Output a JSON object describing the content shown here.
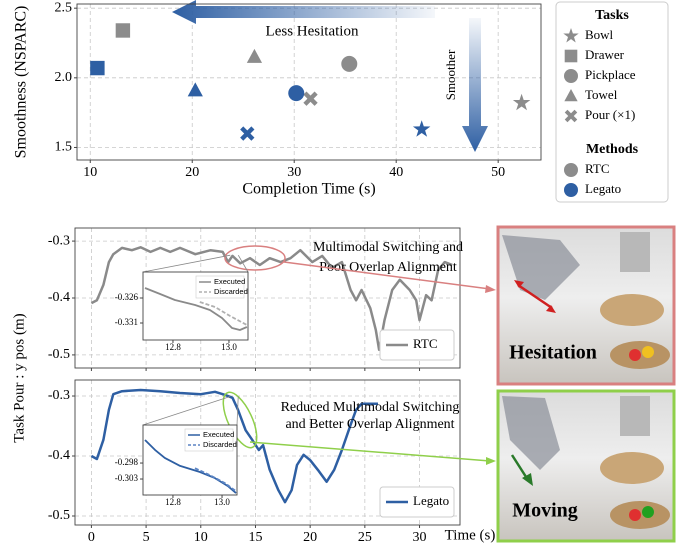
{
  "chart_data": [
    {
      "type": "scatter",
      "xlabel": "Completion Time (s)",
      "ylabel": "Smoothness (NSPARC)",
      "xlim": [
        8.7,
        54.2
      ],
      "ylim": [
        1.41,
        2.53
      ],
      "xticks": [
        10,
        20,
        30,
        40,
        50
      ],
      "yticks": [
        1.5,
        {
          "value": 2,
          "label": "2.0"
        },
        2.5
      ],
      "grid": true,
      "category_title": "Tasks",
      "categories": [
        "Bowl",
        "Drawer",
        "Pickplace",
        "Towel",
        "Pour (×1)"
      ],
      "markers": [
        "star",
        "square",
        "circle",
        "triangle",
        "x"
      ],
      "legend_marker_color": "#8c8c8c",
      "series_title": "Methods",
      "series": [
        {
          "name": "RTC",
          "color": "#8c8c8c",
          "x": [
            52.3,
            13.2,
            35.4,
            26.1,
            31.6
          ],
          "values": [
            1.82,
            2.34,
            2.1,
            2.15,
            1.85
          ]
        },
        {
          "name": "Legato",
          "color": "#2e5fa3",
          "x": [
            42.5,
            10.7,
            30.2,
            20.3,
            25.4
          ],
          "values": [
            1.63,
            2.07,
            1.89,
            1.91,
            1.6
          ]
        }
      ],
      "annotations": [
        "Less Hesitation",
        "Smoother"
      ]
    },
    {
      "type": "line",
      "ylabel": "Task Pour :  y pos (m)",
      "xlim": [
        -1.5,
        33.7
      ],
      "ylim": [
        -0.523,
        -0.277
      ],
      "xticks": [
        0,
        5,
        10,
        15,
        20,
        25,
        30
      ],
      "yticks": [
        -0.3,
        -0.4,
        -0.5
      ],
      "grid": true,
      "legend": "lower right",
      "series": [
        {
          "name": "RTC",
          "color": "#8a8a8a",
          "x": [
            0,
            0.5,
            1.1,
            1.6,
            2,
            2.8,
            3.7,
            4.5,
            5.4,
            6.3,
            7.2,
            8.1,
            9.5,
            10.9,
            12,
            12.5,
            12.9,
            13.6,
            14.5,
            15.4,
            16.3,
            17.3,
            18.2,
            19.1,
            20.2,
            21.1,
            22,
            22.9,
            23.7,
            24.2,
            24.7,
            25.5,
            26,
            26.3,
            26.8,
            27.5,
            28.2,
            29.1,
            29.7,
            30,
            30.6,
            31.1,
            31.7,
            32.3,
            33
          ],
          "values": [
            -0.409,
            -0.404,
            -0.377,
            -0.337,
            -0.323,
            -0.312,
            -0.316,
            -0.311,
            -0.319,
            -0.312,
            -0.319,
            -0.312,
            -0.323,
            -0.316,
            -0.319,
            -0.337,
            -0.326,
            -0.339,
            -0.33,
            -0.342,
            -0.33,
            -0.337,
            -0.33,
            -0.316,
            -0.337,
            -0.326,
            -0.347,
            -0.337,
            -0.386,
            -0.404,
            -0.386,
            -0.418,
            -0.456,
            -0.491,
            -0.439,
            -0.386,
            -0.368,
            -0.386,
            -0.404,
            -0.439,
            -0.395,
            -0.404,
            -0.351,
            -0.337,
            -0.342
          ]
        }
      ],
      "annotation": [
        "Multimodal Switching and",
        "Poor Overlap Alignment"
      ],
      "annotation_color": "#c0392b",
      "inset": {
        "xlim": [
          12.693,
          13.068
        ],
        "ylim": [
          -0.3344,
          -0.3208
        ],
        "xticks": [
          12.8,
          {
            "value": 13,
            "label": "13.0"
          }
        ],
        "yticks": [
          -0.326,
          -0.331
        ],
        "series": [
          {
            "name": "Executed",
            "color": "#8a8a8a",
            "x": [
              12.7,
              12.754,
              12.807,
              12.879,
              12.932,
              12.975,
              13.011,
              13.039,
              13.064
            ],
            "values": [
              -0.324,
              -0.3252,
              -0.3264,
              -0.3274,
              -0.3284,
              -0.33,
              -0.332,
              -0.3324,
              -0.3318
            ]
          },
          {
            "name": "Discarded",
            "color": "#b0b0b0",
            "dashed": true,
            "x": [
              12.896,
              12.95,
              13.004,
              13.064
            ],
            "values": [
              -0.3268,
              -0.3278,
              -0.3296,
              -0.3314
            ]
          }
        ]
      }
    },
    {
      "type": "line",
      "xlabel": "Time (s)",
      "xlim": [
        -1.5,
        33.7
      ],
      "ylim": [
        -0.515,
        -0.2733
      ],
      "xticks": [
        0,
        5,
        10,
        15,
        20,
        25,
        30
      ],
      "yticks": [
        -0.3,
        -0.4,
        -0.5
      ],
      "grid": true,
      "legend": "lower right",
      "series": [
        {
          "name": "Legato",
          "color": "#2e5fa3",
          "x": [
            0,
            0.5,
            1.1,
            1.6,
            2,
            2.8,
            4.5,
            6.3,
            8.1,
            10,
            11.3,
            12.2,
            12.9,
            13.4,
            14.1,
            14.7,
            15.3,
            15.7,
            16.3,
            17.1,
            17.7,
            18.3,
            18.8,
            19.4,
            20,
            20.7,
            21.5,
            22.2,
            22.9,
            23.7,
            24.2,
            24.7,
            25.5,
            26.2
          ],
          "values": [
            -0.4,
            -0.405,
            -0.373,
            -0.323,
            -0.297,
            -0.292,
            -0.29,
            -0.292,
            -0.295,
            -0.297,
            -0.293,
            -0.298,
            -0.303,
            -0.323,
            -0.357,
            -0.373,
            -0.39,
            -0.382,
            -0.423,
            -0.457,
            -0.477,
            -0.457,
            -0.415,
            -0.398,
            -0.407,
            -0.423,
            -0.443,
            -0.423,
            -0.39,
            -0.348,
            -0.323,
            -0.313,
            -0.313,
            -0.313
          ]
        }
      ],
      "annotation": [
        "Reduced Multimodal Switching",
        "and Better Overlap Alignment"
      ],
      "annotation_color": "#3f9a2c",
      "inset": {
        "xlim": [
          12.678,
          13.061
        ],
        "ylim": [
          -0.308,
          -0.2861
        ],
        "xticks": [
          12.8,
          {
            "value": 13,
            "label": "13.0"
          }
        ],
        "yticks": [
          -0.298,
          -0.303
        ],
        "series": [
          {
            "name": "Executed",
            "color": "#2e5fa3",
            "x": [
              12.686,
              12.727,
              12.767,
              12.829,
              12.91,
              12.971,
              13.024,
              13.057
            ],
            "values": [
              -0.2908,
              -0.2939,
              -0.2964,
              -0.2989,
              -0.3008,
              -0.3027,
              -0.3052,
              -0.3074
            ]
          },
          {
            "name": "Discarded",
            "color": "#5b84c4",
            "dashed": true,
            "x": [
              12.89,
              12.951,
              13.012,
              13.057
            ],
            "values": [
              -0.2996,
              -0.3018,
              -0.3043,
              -0.3068
            ]
          }
        ]
      }
    }
  ],
  "photos": [
    {
      "caption": "Hesitation",
      "color": "#c0282d",
      "border": "#d98080"
    },
    {
      "caption": "Moving",
      "color": "#3c8c28",
      "border": "#8fcf4a"
    }
  ]
}
